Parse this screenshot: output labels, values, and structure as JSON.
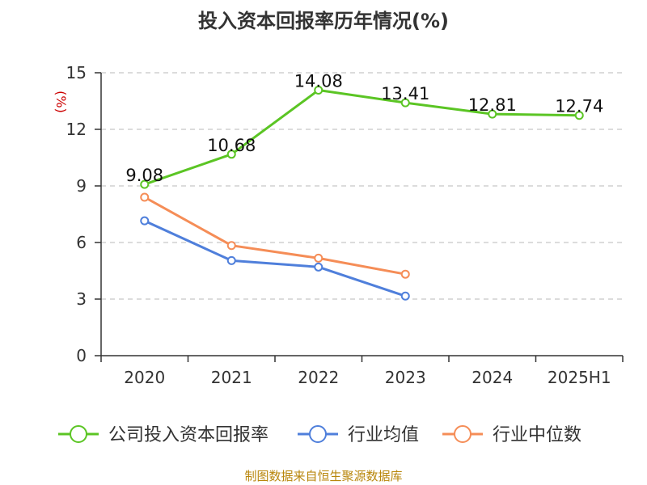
{
  "chart_data": {
    "type": "line",
    "title": "投入资本回报率历年情况(%)",
    "ylabel": "(%)",
    "xlabel": "",
    "categories": [
      "2020",
      "2021",
      "2022",
      "2023",
      "2024",
      "2025H1"
    ],
    "ylim": [
      0,
      15
    ],
    "yticks": [
      "0",
      "3",
      "6",
      "9",
      "12",
      "15"
    ],
    "grid": true,
    "legend_position": "bottom",
    "series": [
      {
        "name": "公司投入资本回报率",
        "color": "#5bc524",
        "values": [
          9.08,
          10.68,
          14.08,
          13.41,
          12.81,
          12.74
        ],
        "labels": [
          "9.08",
          "10.68",
          "14.08",
          "13.41",
          "12.81",
          "12.74"
        ]
      },
      {
        "name": "行业均值",
        "color": "#4f7fdb",
        "values": [
          7.15,
          5.04,
          4.7,
          3.16,
          null,
          null
        ],
        "labels": []
      },
      {
        "name": "行业中位数",
        "color": "#f58d57",
        "values": [
          8.4,
          5.84,
          5.17,
          4.32,
          null,
          null
        ],
        "labels": []
      }
    ]
  },
  "source_text": "制图数据来自恒生聚源数据库"
}
